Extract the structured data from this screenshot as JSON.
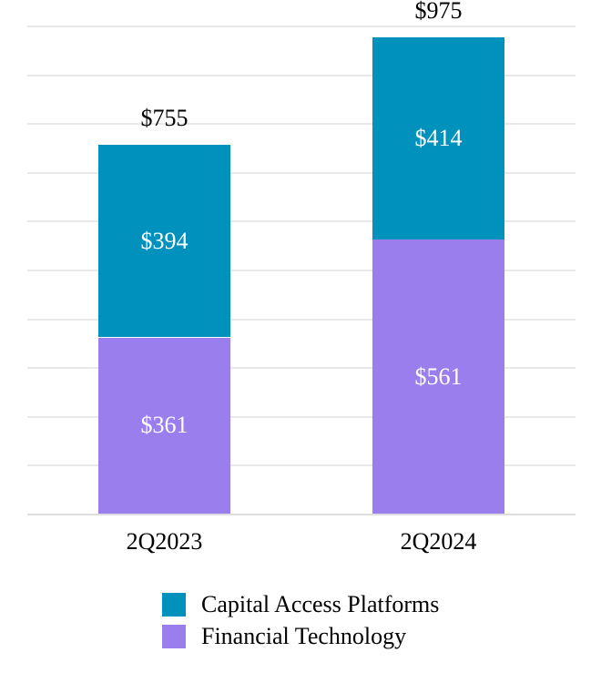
{
  "chart_data": {
    "type": "bar",
    "stacked": true,
    "title": "",
    "xlabel": "",
    "ylabel": "",
    "categories": [
      "2Q2023",
      "2Q2024"
    ],
    "series": [
      {
        "name": "Capital Access Platforms",
        "color": "#0091BD",
        "values": [
          394,
          414
        ],
        "labels": [
          "$394",
          "$414"
        ]
      },
      {
        "name": "Financial Technology",
        "color": "#9B7EEE",
        "values": [
          361,
          561
        ],
        "labels": [
          "$361",
          "$561"
        ]
      }
    ],
    "totals": [
      755,
      975
    ],
    "total_labels": [
      "$755",
      "$975"
    ],
    "ylim": [
      0,
      1000
    ],
    "gridline_step": 100,
    "grid": true,
    "y_axis_tick_labels_visible": false,
    "legend_position": "bottom",
    "legend_items": [
      {
        "label": "Capital Access Platforms",
        "color": "#0091BD"
      },
      {
        "label": "Financial Technology",
        "color": "#9B7EEE"
      }
    ]
  },
  "style": {
    "background_color": "#ffffff",
    "gridline_color": "#e9e9e9",
    "axis_line_color": "#dedede",
    "segment_label_color": "#ffffff",
    "text_color": "#000000"
  }
}
